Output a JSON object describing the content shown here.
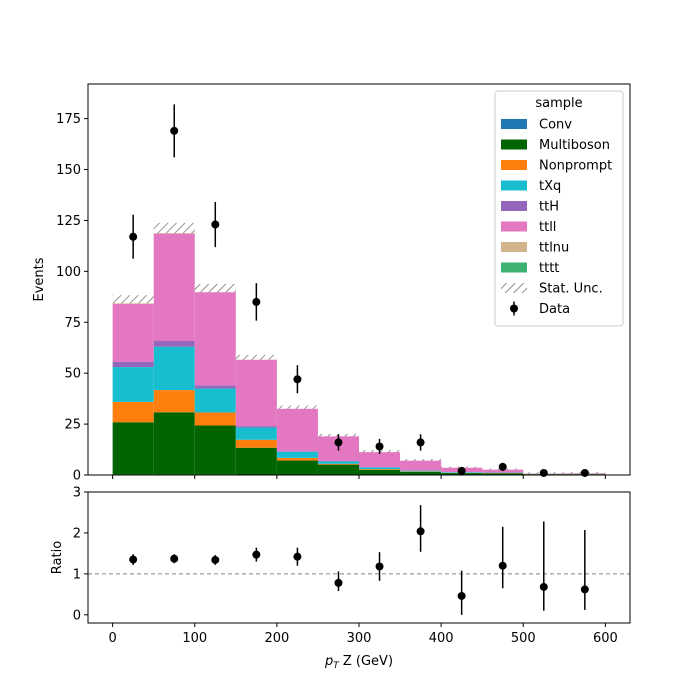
{
  "chart_data": {
    "type": "bar",
    "stacked": true,
    "bin_edges": [
      0,
      50,
      100,
      150,
      200,
      250,
      300,
      350,
      400,
      450,
      500,
      550,
      600
    ],
    "xlabel_prefix": "p",
    "xlabel_sub": "T",
    "xlabel_rest": " Z (GeV)",
    "ylabel": "Events",
    "ratio_ylabel": "Ratio",
    "xlim": [
      -30,
      630
    ],
    "ylim": [
      0,
      192
    ],
    "ratio_ylim": [
      -0.2,
      3.0
    ],
    "x_ticks": [
      0,
      100,
      200,
      300,
      400,
      500,
      600
    ],
    "y_ticks": [
      0,
      25,
      50,
      75,
      100,
      125,
      150,
      175
    ],
    "ratio_ticks": [
      0,
      1,
      2,
      3
    ],
    "ratio_reference": 1,
    "legend_title": "sample",
    "legend_position": "top-right",
    "series": [
      {
        "name": "Conv",
        "color": "#1f77b4",
        "values": [
          0.3,
          0.3,
          0.3,
          0.2,
          0.1,
          0.1,
          0.1,
          0.05,
          0.05,
          0.05,
          0.02,
          0.02
        ]
      },
      {
        "name": "Multiboson",
        "color": "#006400",
        "values": [
          25.6,
          30.5,
          24.0,
          13.2,
          7.0,
          5.0,
          2.5,
          1.5,
          0.9,
          0.8,
          0.4,
          0.4
        ]
      },
      {
        "name": "Nonprompt",
        "color": "#ff7f0e",
        "values": [
          10.0,
          10.9,
          6.4,
          3.9,
          1.3,
          0.4,
          0.3,
          0.2,
          0.1,
          0.1,
          0.05,
          0.05
        ]
      },
      {
        "name": "tXq",
        "color": "#17becf",
        "values": [
          17.1,
          21.3,
          11.8,
          6.0,
          3.0,
          1.2,
          0.8,
          0.4,
          0.3,
          0.2,
          0.1,
          0.1
        ]
      },
      {
        "name": "ttH",
        "color": "#9467bd",
        "values": [
          2.5,
          2.8,
          1.5,
          0.7,
          0.3,
          0.2,
          0.1,
          0.1,
          0.05,
          0.05,
          0.02,
          0.02
        ]
      },
      {
        "name": "ttll",
        "color": "#e377c2",
        "values": [
          28.5,
          52.7,
          45.8,
          32.7,
          21.0,
          12.2,
          7.6,
          5.0,
          2.3,
          1.6,
          0.4,
          0.5
        ]
      },
      {
        "name": "ttlnu",
        "color": "#d2b48c",
        "values": [
          2.0,
          2.5,
          1.7,
          0.9,
          0.5,
          0.4,
          0.2,
          0.15,
          0.1,
          0.05,
          0.05,
          0.05
        ]
      },
      {
        "name": "tttt",
        "color": "#3cb371",
        "values": [
          0.3,
          0.3,
          0.3,
          0.2,
          0.1,
          0.1,
          0.1,
          0.05,
          0.05,
          0.05,
          0.02,
          0.02
        ]
      }
    ],
    "stat_unc_label": "Stat. Unc.",
    "stat_unc_halfwidth": [
      2.0,
      2.5,
      2.0,
      1.2,
      0.8,
      0.6,
      0.5,
      0.4,
      0.3,
      0.3,
      0.3,
      0.3
    ],
    "data_label": "Data",
    "data_x": [
      25,
      75,
      125,
      175,
      225,
      275,
      325,
      375,
      425,
      475,
      525,
      575
    ],
    "data_values": [
      117,
      169,
      123,
      85,
      47,
      16,
      14,
      16,
      2,
      4,
      1,
      1
    ],
    "data_errors": [
      10.8,
      13.0,
      11.1,
      9.2,
      6.9,
      4.0,
      3.7,
      4.0,
      1.4,
      2.0,
      1.0,
      1.0
    ],
    "ratio_values": [
      1.35,
      1.37,
      1.34,
      1.47,
      1.42,
      0.78,
      1.18,
      2.04,
      0.46,
      1.2,
      0.68,
      0.62
    ],
    "ratio_err_low": [
      0.13,
      0.11,
      0.12,
      0.17,
      0.22,
      0.2,
      0.35,
      0.5,
      0.46,
      0.55,
      0.58,
      0.5
    ],
    "ratio_err_high": [
      0.13,
      0.11,
      0.12,
      0.17,
      0.22,
      0.28,
      0.35,
      0.64,
      0.62,
      0.95,
      1.6,
      1.45
    ]
  }
}
